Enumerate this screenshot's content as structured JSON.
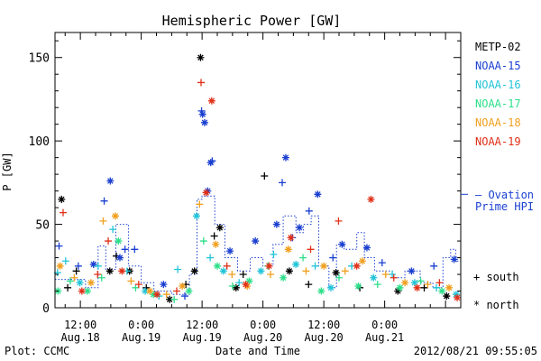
{
  "chart_data": {
    "type": "scatter",
    "title": "Hemispheric Power [GW]",
    "xlabel": "Date and Time",
    "ylabel": "P [GW]",
    "ylim": [
      0,
      165
    ],
    "xlim": [
      7.0,
      87.0
    ],
    "yticks": [
      0,
      50,
      100,
      150
    ],
    "xticks": [
      {
        "x": 12,
        "time": "12:00",
        "date": "Aug.18"
      },
      {
        "x": 24,
        "time": "0:00",
        "date": "Aug.19"
      },
      {
        "x": 36,
        "time": "12:00",
        "date": "Aug.19"
      },
      {
        "x": 48,
        "time": "0:00",
        "date": "Aug.20"
      },
      {
        "x": 60,
        "time": "12:00",
        "date": "Aug.20"
      },
      {
        "x": 72,
        "time": "0:00",
        "date": "Aug.21"
      }
    ],
    "marker_legend": [
      {
        "symbol": "+",
        "label": "south"
      },
      {
        "symbol": "*",
        "label": "north"
      }
    ],
    "ovation": {
      "label_line1": "— Ovation",
      "label_line2": "Prime HPI",
      "color": "#1a3fd0",
      "right_value": 68
    },
    "series": [
      {
        "name": "METP-02",
        "color": "#000000",
        "points": [
          {
            "x": 8.3,
            "y": 65,
            "m": "*"
          },
          {
            "x": 9.5,
            "y": 12,
            "m": "+"
          },
          {
            "x": 11.2,
            "y": 22,
            "m": "+"
          },
          {
            "x": 17.8,
            "y": 22,
            "m": "*"
          },
          {
            "x": 19.1,
            "y": 31,
            "m": "+"
          },
          {
            "x": 21.7,
            "y": 22,
            "m": "*"
          },
          {
            "x": 25.0,
            "y": 12,
            "m": "+"
          },
          {
            "x": 29.6,
            "y": 5,
            "m": "*"
          },
          {
            "x": 32.8,
            "y": 14,
            "m": "+"
          },
          {
            "x": 34.5,
            "y": 22,
            "m": "*"
          },
          {
            "x": 35.7,
            "y": 150,
            "m": "*"
          },
          {
            "x": 38.4,
            "y": 43,
            "m": "+"
          },
          {
            "x": 39.5,
            "y": 48,
            "m": "*"
          },
          {
            "x": 42.7,
            "y": 12,
            "m": "*"
          },
          {
            "x": 44.1,
            "y": 20,
            "m": "+"
          },
          {
            "x": 48.3,
            "y": 79,
            "m": "+"
          },
          {
            "x": 53.2,
            "y": 22,
            "m": "*"
          },
          {
            "x": 57.0,
            "y": 14,
            "m": "+"
          },
          {
            "x": 62.4,
            "y": 21,
            "m": "*"
          },
          {
            "x": 67.1,
            "y": 12,
            "m": "+"
          },
          {
            "x": 74.6,
            "y": 10,
            "m": "*"
          },
          {
            "x": 79.8,
            "y": 12,
            "m": "+"
          },
          {
            "x": 84.2,
            "y": 7,
            "m": "*"
          }
        ]
      },
      {
        "name": "NOAA-15",
        "color": "#1a3fd0",
        "points": [
          {
            "x": 7.8,
            "y": 37,
            "m": "+"
          },
          {
            "x": 11.6,
            "y": 25,
            "m": "+"
          },
          {
            "x": 14.6,
            "y": 26,
            "m": "*"
          },
          {
            "x": 16.7,
            "y": 64,
            "m": "+"
          },
          {
            "x": 17.9,
            "y": 76,
            "m": "*"
          },
          {
            "x": 19.8,
            "y": 30,
            "m": "*"
          },
          {
            "x": 20.8,
            "y": 35,
            "m": "+"
          },
          {
            "x": 22.7,
            "y": 35,
            "m": "+"
          },
          {
            "x": 28.4,
            "y": 14,
            "m": "*"
          },
          {
            "x": 32.6,
            "y": 7,
            "m": "+"
          },
          {
            "x": 35.9,
            "y": 118,
            "m": "+"
          },
          {
            "x": 36.1,
            "y": 116,
            "m": "*"
          },
          {
            "x": 36.5,
            "y": 111,
            "m": "*"
          },
          {
            "x": 37.1,
            "y": 70,
            "m": "*"
          },
          {
            "x": 37.7,
            "y": 87,
            "m": "*"
          },
          {
            "x": 38.0,
            "y": 88,
            "m": "+"
          },
          {
            "x": 41.5,
            "y": 34,
            "m": "*"
          },
          {
            "x": 46.5,
            "y": 40,
            "m": "*"
          },
          {
            "x": 50.7,
            "y": 50,
            "m": "*"
          },
          {
            "x": 51.8,
            "y": 75,
            "m": "+"
          },
          {
            "x": 52.5,
            "y": 90,
            "m": "*"
          },
          {
            "x": 53.8,
            "y": 42,
            "m": "+"
          },
          {
            "x": 55.2,
            "y": 48,
            "m": "*"
          },
          {
            "x": 57.1,
            "y": 58,
            "m": "+"
          },
          {
            "x": 58.8,
            "y": 68,
            "m": "*"
          },
          {
            "x": 61.8,
            "y": 30,
            "m": "+"
          },
          {
            "x": 63.6,
            "y": 38,
            "m": "*"
          },
          {
            "x": 68.5,
            "y": 36,
            "m": "*"
          },
          {
            "x": 71.5,
            "y": 27,
            "m": "+"
          },
          {
            "x": 77.3,
            "y": 22,
            "m": "*"
          },
          {
            "x": 81.7,
            "y": 25,
            "m": "+"
          },
          {
            "x": 85.7,
            "y": 29,
            "m": "*"
          }
        ]
      },
      {
        "name": "NOAA-16",
        "color": "#22c4d8",
        "points": [
          {
            "x": 7.5,
            "y": 21,
            "m": "+"
          },
          {
            "x": 9.1,
            "y": 28,
            "m": "+"
          },
          {
            "x": 11.9,
            "y": 15,
            "m": "*"
          },
          {
            "x": 15.5,
            "y": 25,
            "m": "+"
          },
          {
            "x": 18.4,
            "y": 47,
            "m": "+"
          },
          {
            "x": 21.2,
            "y": 22,
            "m": "+"
          },
          {
            "x": 24.8,
            "y": 10,
            "m": "*"
          },
          {
            "x": 27.5,
            "y": 7,
            "m": "+"
          },
          {
            "x": 31.2,
            "y": 23,
            "m": "+"
          },
          {
            "x": 34.9,
            "y": 55,
            "m": "*"
          },
          {
            "x": 37.6,
            "y": 30,
            "m": "+"
          },
          {
            "x": 40.2,
            "y": 22,
            "m": "*"
          },
          {
            "x": 43.3,
            "y": 15,
            "m": "+"
          },
          {
            "x": 47.6,
            "y": 22,
            "m": "*"
          },
          {
            "x": 50.1,
            "y": 32,
            "m": "+"
          },
          {
            "x": 54.5,
            "y": 26,
            "m": "*"
          },
          {
            "x": 58.3,
            "y": 25,
            "m": "+"
          },
          {
            "x": 61.4,
            "y": 12,
            "m": "*"
          },
          {
            "x": 65.5,
            "y": 25,
            "m": "+"
          },
          {
            "x": 69.8,
            "y": 18,
            "m": "*"
          },
          {
            "x": 73.5,
            "y": 20,
            "m": "+"
          },
          {
            "x": 77.9,
            "y": 15,
            "m": "*"
          },
          {
            "x": 82.2,
            "y": 12,
            "m": "+"
          },
          {
            "x": 86.1,
            "y": 8,
            "m": "*"
          }
        ]
      },
      {
        "name": "NOAA-17",
        "color": "#2ddf8a",
        "points": [
          {
            "x": 7.6,
            "y": 10,
            "m": "*"
          },
          {
            "x": 10.0,
            "y": 16,
            "m": "+"
          },
          {
            "x": 13.4,
            "y": 10,
            "m": "*"
          },
          {
            "x": 16.2,
            "y": 18,
            "m": "+"
          },
          {
            "x": 19.5,
            "y": 40,
            "m": "*"
          },
          {
            "x": 22.9,
            "y": 12,
            "m": "+"
          },
          {
            "x": 26.4,
            "y": 8,
            "m": "*"
          },
          {
            "x": 30.5,
            "y": 5,
            "m": "+"
          },
          {
            "x": 33.4,
            "y": 10,
            "m": "*"
          },
          {
            "x": 36.3,
            "y": 40,
            "m": "+"
          },
          {
            "x": 39.0,
            "y": 25,
            "m": "*"
          },
          {
            "x": 42.0,
            "y": 13,
            "m": "+"
          },
          {
            "x": 45.3,
            "y": 16,
            "m": "*"
          },
          {
            "x": 49.0,
            "y": 25,
            "m": "+"
          },
          {
            "x": 52.0,
            "y": 18,
            "m": "*"
          },
          {
            "x": 55.9,
            "y": 30,
            "m": "+"
          },
          {
            "x": 59.5,
            "y": 10,
            "m": "*"
          },
          {
            "x": 63.0,
            "y": 18,
            "m": "+"
          },
          {
            "x": 66.8,
            "y": 13,
            "m": "*"
          },
          {
            "x": 70.6,
            "y": 14,
            "m": "+"
          },
          {
            "x": 75.0,
            "y": 12,
            "m": "*"
          },
          {
            "x": 79.1,
            "y": 16,
            "m": "+"
          },
          {
            "x": 83.3,
            "y": 10,
            "m": "*"
          }
        ]
      },
      {
        "name": "NOAA-18",
        "color": "#f0a020",
        "points": [
          {
            "x": 8.0,
            "y": 25,
            "m": "*"
          },
          {
            "x": 10.8,
            "y": 18,
            "m": "+"
          },
          {
            "x": 14.1,
            "y": 15,
            "m": "*"
          },
          {
            "x": 16.5,
            "y": 52,
            "m": "+"
          },
          {
            "x": 18.9,
            "y": 55,
            "m": "*"
          },
          {
            "x": 22.0,
            "y": 16,
            "m": "+"
          },
          {
            "x": 25.7,
            "y": 10,
            "m": "*"
          },
          {
            "x": 29.0,
            "y": 8,
            "m": "+"
          },
          {
            "x": 32.1,
            "y": 13,
            "m": "*"
          },
          {
            "x": 35.5,
            "y": 62,
            "m": "+"
          },
          {
            "x": 38.7,
            "y": 38,
            "m": "*"
          },
          {
            "x": 41.9,
            "y": 20,
            "m": "+"
          },
          {
            "x": 44.9,
            "y": 13,
            "m": "*"
          },
          {
            "x": 49.5,
            "y": 20,
            "m": "+"
          },
          {
            "x": 53.0,
            "y": 35,
            "m": "*"
          },
          {
            "x": 56.5,
            "y": 22,
            "m": "+"
          },
          {
            "x": 60.0,
            "y": 25,
            "m": "*"
          },
          {
            "x": 64.2,
            "y": 22,
            "m": "+"
          },
          {
            "x": 67.6,
            "y": 28,
            "m": "*"
          },
          {
            "x": 72.2,
            "y": 20,
            "m": "+"
          },
          {
            "x": 76.0,
            "y": 15,
            "m": "*"
          },
          {
            "x": 80.5,
            "y": 14,
            "m": "+"
          },
          {
            "x": 84.7,
            "y": 12,
            "m": "*"
          }
        ]
      },
      {
        "name": "NOAA-19",
        "color": "#e03018",
        "points": [
          {
            "x": 8.6,
            "y": 57,
            "m": "+"
          },
          {
            "x": 12.3,
            "y": 10,
            "m": "*"
          },
          {
            "x": 15.4,
            "y": 20,
            "m": "+"
          },
          {
            "x": 17.5,
            "y": 40,
            "m": "+"
          },
          {
            "x": 20.2,
            "y": 22,
            "m": "*"
          },
          {
            "x": 23.5,
            "y": 14,
            "m": "+"
          },
          {
            "x": 27.1,
            "y": 8,
            "m": "*"
          },
          {
            "x": 31.0,
            "y": 10,
            "m": "+"
          },
          {
            "x": 35.8,
            "y": 135,
            "m": "+"
          },
          {
            "x": 36.8,
            "y": 69,
            "m": "*"
          },
          {
            "x": 37.9,
            "y": 124,
            "m": "*"
          },
          {
            "x": 40.9,
            "y": 25,
            "m": "+"
          },
          {
            "x": 44.6,
            "y": 14,
            "m": "*"
          },
          {
            "x": 49.2,
            "y": 25,
            "m": "*"
          },
          {
            "x": 53.5,
            "y": 42,
            "m": "*"
          },
          {
            "x": 57.4,
            "y": 35,
            "m": "+"
          },
          {
            "x": 62.9,
            "y": 52,
            "m": "+"
          },
          {
            "x": 66.5,
            "y": 25,
            "m": "*"
          },
          {
            "x": 69.3,
            "y": 65,
            "m": "*"
          },
          {
            "x": 73.8,
            "y": 18,
            "m": "+"
          },
          {
            "x": 78.4,
            "y": 12,
            "m": "*"
          },
          {
            "x": 82.8,
            "y": 15,
            "m": "+"
          },
          {
            "x": 86.3,
            "y": 6,
            "m": "*"
          }
        ]
      }
    ],
    "ovation_steps": [
      [
        7.0,
        17
      ],
      [
        13.0,
        12
      ],
      [
        15.5,
        37
      ],
      [
        17.0,
        23
      ],
      [
        19.0,
        50
      ],
      [
        21.5,
        25
      ],
      [
        24.0,
        15
      ],
      [
        26.5,
        10
      ],
      [
        30.0,
        8
      ],
      [
        33.5,
        20
      ],
      [
        35.0,
        65
      ],
      [
        36.0,
        67
      ],
      [
        38.5,
        50
      ],
      [
        40.5,
        30
      ],
      [
        43.0,
        22
      ],
      [
        45.5,
        30
      ],
      [
        48.0,
        25
      ],
      [
        50.0,
        38
      ],
      [
        52.0,
        55
      ],
      [
        54.5,
        45
      ],
      [
        56.0,
        50
      ],
      [
        57.5,
        55
      ],
      [
        59.0,
        25
      ],
      [
        61.0,
        12
      ],
      [
        62.5,
        38
      ],
      [
        64.0,
        35
      ],
      [
        66.5,
        45
      ],
      [
        68.0,
        30
      ],
      [
        70.0,
        22
      ],
      [
        73.5,
        18
      ],
      [
        76.0,
        22
      ],
      [
        79.0,
        15
      ],
      [
        81.5,
        12
      ],
      [
        83.5,
        30
      ],
      [
        85.0,
        35
      ],
      [
        86.0,
        28
      ]
    ]
  },
  "footer": {
    "left": "Plot: CCMC",
    "right": "2012/08/21 09:55:05"
  }
}
